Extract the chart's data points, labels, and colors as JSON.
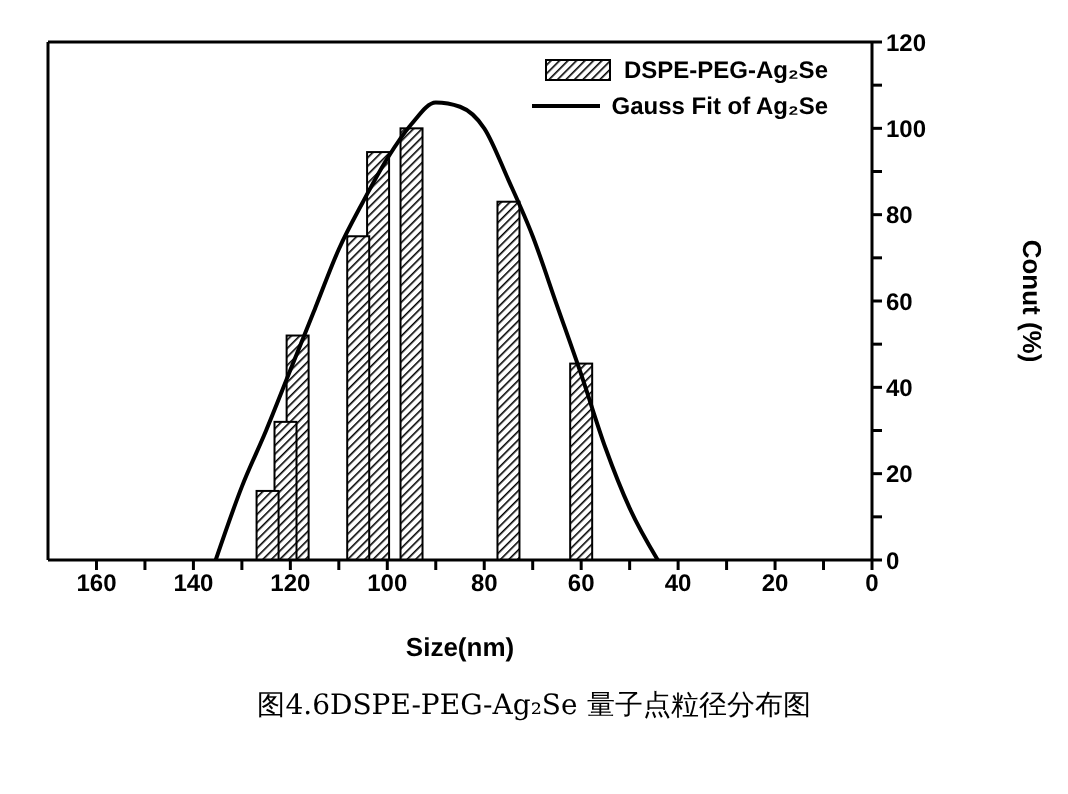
{
  "chart_data": {
    "type": "bar",
    "xlabel": "Size(nm)",
    "ylabel": "Conut (%)",
    "annotations": [
      "图4.6DSPE-PEG-Ag₂Se 量子点粒径分布图"
    ],
    "xlim": [
      170,
      0
    ],
    "xticks": [
      0,
      {
        "value": 10,
        "label": null
      },
      20,
      {
        "value": 30,
        "label": null
      },
      40,
      {
        "value": 50,
        "label": null
      },
      60,
      {
        "value": 70,
        "label": null
      },
      80,
      {
        "value": 90,
        "label": null
      },
      100,
      {
        "value": 110,
        "label": null
      },
      120,
      {
        "value": 130,
        "label": null
      },
      140,
      {
        "value": 150,
        "label": null
      },
      160
    ],
    "ylim": [
      0,
      120
    ],
    "yticks": [
      0,
      {
        "value": 10,
        "label": null
      },
      20,
      {
        "value": 30,
        "label": null
      },
      40,
      {
        "value": 50,
        "label": null
      },
      60,
      {
        "value": 70,
        "label": null
      },
      80,
      {
        "value": 90,
        "label": null
      },
      100,
      {
        "value": 110,
        "label": null
      },
      120
    ],
    "grid": false,
    "legend": "top right",
    "series": [
      {
        "name": "DSPE-PEG-Ag₂Se",
        "color": "#000000",
        "x": [
          124.7,
          121,
          118.5,
          106,
          101.9,
          95,
          75,
          60
        ],
        "values": [
          16,
          32,
          52,
          75,
          94.5,
          100,
          83,
          45.5
        ]
      },
      {
        "name": "Gauss Fit of Ag₂Se",
        "type": "line",
        "color": "#000000",
        "marker": "none",
        "line_style": "solid",
        "x": [
          135.4,
          130,
          125,
          120,
          115,
          110,
          105,
          100,
          95,
          90,
          85,
          80,
          75,
          70,
          65,
          60,
          55,
          50,
          44.2
        ],
        "values": [
          0,
          17,
          30,
          44,
          58,
          72,
          83,
          93,
          101,
          106,
          105,
          100,
          88,
          75,
          59,
          43,
          26,
          12,
          0
        ]
      }
    ]
  }
}
